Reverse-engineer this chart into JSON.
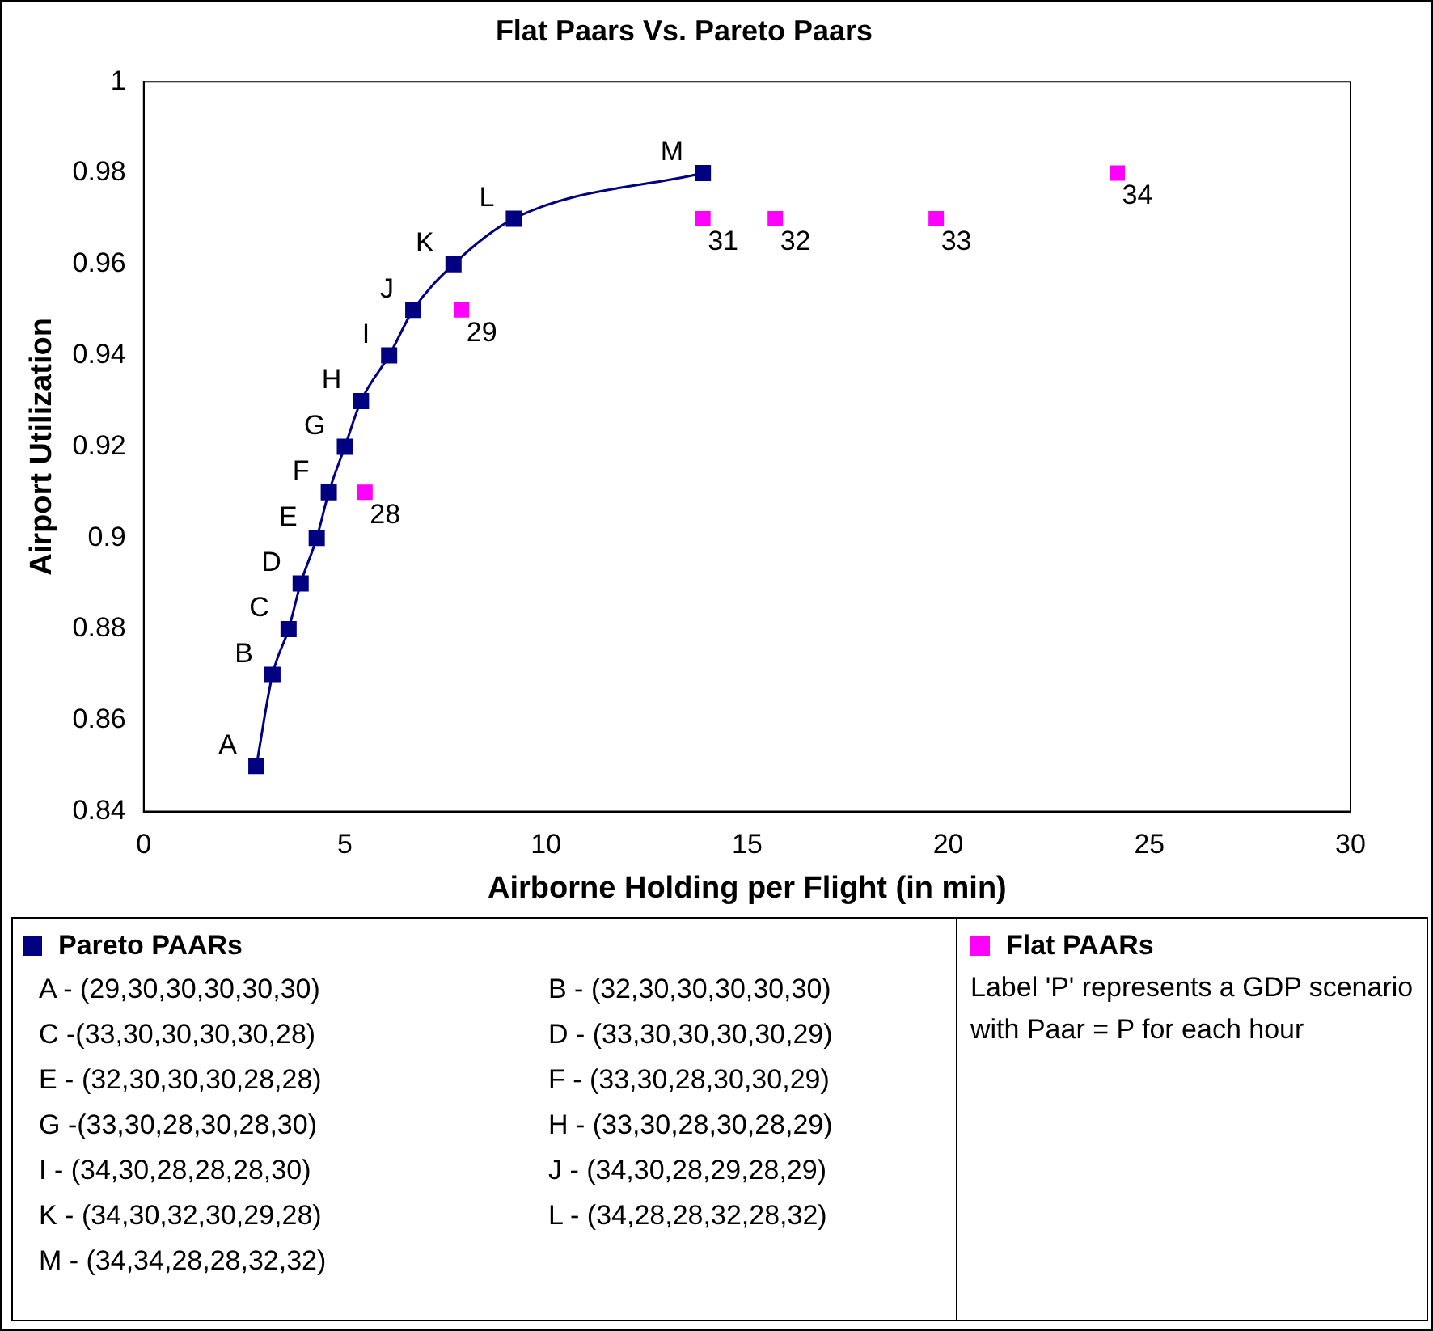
{
  "chart_data": {
    "type": "scatter",
    "title": "Flat Paars Vs. Pareto Paars",
    "xlabel": "Airborne Holding per Flight (in min)",
    "ylabel": "Airport Utilization",
    "xlim": [
      0,
      30
    ],
    "xticks": [
      0,
      5,
      10,
      15,
      20,
      25,
      30
    ],
    "ylim": [
      0.84,
      1
    ],
    "yticks": [
      0.84,
      0.86,
      0.88,
      0.9,
      0.92,
      0.94,
      0.96,
      0.98,
      1
    ],
    "grid": false,
    "legend": "bottom",
    "marker": "square",
    "series": [
      {
        "name": "Pareto PAARs",
        "type": "line",
        "color": "#000080",
        "x": [
          2.8,
          3.2,
          3.6,
          3.9,
          4.3,
          4.6,
          5.0,
          5.4,
          6.1,
          6.7,
          7.7,
          9.2,
          13.9
        ],
        "values": [
          0.85,
          0.87,
          0.88,
          0.89,
          0.9,
          0.91,
          0.92,
          0.93,
          0.94,
          0.95,
          0.96,
          0.97,
          0.98
        ]
      },
      {
        "name": "Flat PAARs",
        "type": "scatter",
        "color": "#ff00ff",
        "x": [
          5.5,
          7.9,
          13.9,
          15.7,
          19.7,
          24.2
        ],
        "values": [
          0.91,
          0.95,
          0.97,
          0.97,
          0.97,
          0.98
        ]
      }
    ],
    "annotations": [
      {
        "text": "A",
        "x": 2.8,
        "y": 0.85
      },
      {
        "text": "B",
        "x": 3.2,
        "y": 0.87
      },
      {
        "text": "C",
        "x": 3.6,
        "y": 0.88
      },
      {
        "text": "D",
        "x": 3.9,
        "y": 0.89
      },
      {
        "text": "E",
        "x": 4.3,
        "y": 0.9
      },
      {
        "text": "F",
        "x": 4.6,
        "y": 0.91
      },
      {
        "text": "G",
        "x": 5.0,
        "y": 0.92
      },
      {
        "text": "H",
        "x": 5.4,
        "y": 0.93
      },
      {
        "text": "I",
        "x": 6.1,
        "y": 0.94
      },
      {
        "text": "J",
        "x": 6.7,
        "y": 0.95
      },
      {
        "text": "K",
        "x": 7.7,
        "y": 0.96
      },
      {
        "text": "L",
        "x": 9.2,
        "y": 0.97
      },
      {
        "text": "M",
        "x": 13.9,
        "y": 0.98
      },
      {
        "text": "28",
        "x": 5.5,
        "y": 0.91
      },
      {
        "text": "29",
        "x": 7.9,
        "y": 0.95
      },
      {
        "text": "31",
        "x": 13.9,
        "y": 0.97
      },
      {
        "text": "32",
        "x": 15.7,
        "y": 0.97
      },
      {
        "text": "33",
        "x": 19.7,
        "y": 0.97
      },
      {
        "text": "34",
        "x": 24.2,
        "y": 0.98
      },
      "A  - (29,30,30,30,30,30)",
      "B  - (32,30,30,30,30,30)",
      "C  -(33,30,30,30,30,28)",
      "D  - (33,30,30,30,30,29)",
      "E  - (32,30,30,30,28,28)",
      "F  - (33,30,28,30,30,29)",
      "G  -(33,30,28,30,28,30)",
      "H  - (33,30,28,30,28,29)",
      "I  - (34,30,28,28,28,30)",
      "J  - (34,30,28,29,28,29)",
      "K  - (34,30,32,30,29,28)",
      "L  -  (34,28,28,32,28,32)",
      "M -  (34,34,28,28,32,32)",
      "Label 'P' represents a GDP scenario with  Paar = P for each hour"
    ]
  }
}
